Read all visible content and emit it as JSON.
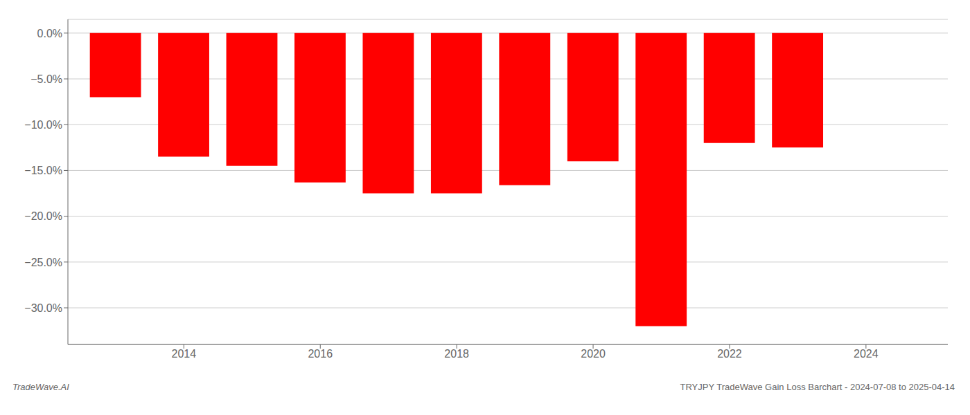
{
  "chart_data": {
    "type": "bar",
    "x": [
      2013,
      2014,
      2015,
      2016,
      2017,
      2018,
      2019,
      2020,
      2021,
      2022,
      2023
    ],
    "values": [
      -7.0,
      -13.5,
      -14.5,
      -16.3,
      -17.5,
      -17.5,
      -16.6,
      -14.0,
      -32.0,
      -12.0,
      -12.5
    ],
    "color": "#ff0000",
    "xlim": [
      2012.3,
      2025.2
    ],
    "xticks": [
      2014,
      2016,
      2018,
      2020,
      2022,
      2024
    ],
    "ylim": [
      -34,
      1.5
    ],
    "yticks": [
      {
        "value": 0,
        "label": "0.0%"
      },
      {
        "value": -5,
        "label": "−5.0%"
      },
      {
        "value": -10,
        "label": "−10.0%"
      },
      {
        "value": -15,
        "label": "−15.0%"
      },
      {
        "value": -20,
        "label": "−20.0%"
      },
      {
        "value": -25,
        "label": "−25.0%"
      },
      {
        "value": -30,
        "label": "−30.0%"
      }
    ],
    "grid": true,
    "annotations": [
      "TradeWave.AI",
      "TRYJPY TradeWave Gain Loss Barchart - 2024-07-08 to 2025-04-14"
    ]
  }
}
